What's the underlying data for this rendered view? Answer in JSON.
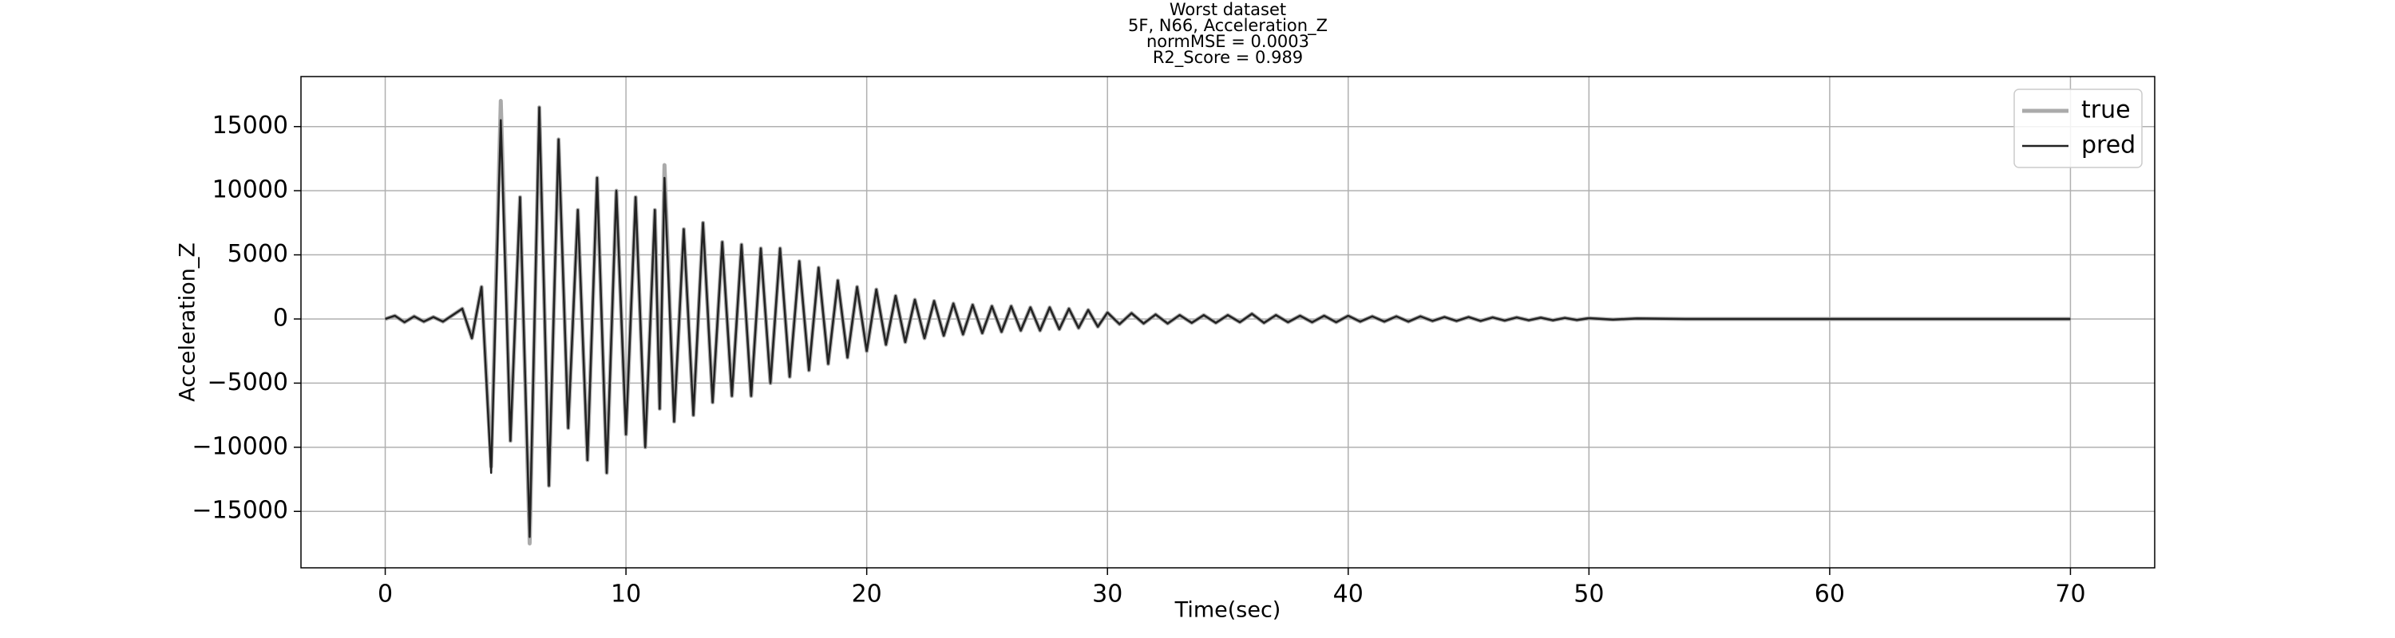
{
  "chart_data": {
    "type": "line",
    "title": [
      "Worst dataset",
      "5F, N66, Acceleration_Z",
      "normMSE = 0.0003",
      "R2_Score = 0.989"
    ],
    "xlabel": "Time(sec)",
    "ylabel": "Acceleration_Z",
    "xlim": [
      -3.5,
      73.5
    ],
    "ylim": [
      -19400,
      18900
    ],
    "xticks": [
      0,
      10,
      20,
      30,
      40,
      50,
      60,
      70
    ],
    "yticks": [
      {
        "value": -15000,
        "label": "−15000"
      },
      {
        "value": -10000,
        "label": "−10000"
      },
      {
        "value": -5000,
        "label": "−5000"
      },
      0,
      5000,
      10000,
      15000
    ],
    "grid": true,
    "legend": "upper right",
    "x": [
      0,
      0.4,
      0.8,
      1.2,
      1.6,
      2.0,
      2.4,
      2.8,
      3.2,
      3.6,
      4.0,
      4.4,
      4.8,
      5.2,
      5.6,
      6.0,
      6.4,
      6.8,
      7.2,
      7.6,
      8.0,
      8.4,
      8.8,
      9.2,
      9.6,
      10.0,
      10.4,
      10.8,
      11.2,
      11.4,
      11.6,
      12.0,
      12.4,
      12.8,
      13.2,
      13.6,
      14.0,
      14.4,
      14.8,
      15.2,
      15.6,
      16.0,
      16.4,
      16.8,
      17.2,
      17.6,
      18.0,
      18.4,
      18.8,
      19.2,
      19.6,
      20.0,
      20.4,
      20.8,
      21.2,
      21.6,
      22.0,
      22.4,
      22.8,
      23.2,
      23.6,
      24.0,
      24.4,
      24.8,
      25.2,
      25.6,
      26.0,
      26.4,
      26.8,
      27.2,
      27.6,
      28.0,
      28.4,
      28.8,
      29.2,
      29.6,
      30.0,
      30.5,
      31,
      31.5,
      32,
      32.5,
      33,
      33.5,
      34,
      34.5,
      35,
      35.5,
      36,
      36.5,
      37,
      37.5,
      38,
      38.5,
      39,
      39.5,
      40,
      40.5,
      41,
      41.5,
      42,
      42.5,
      43,
      43.5,
      44,
      44.5,
      45,
      45.5,
      46,
      46.5,
      47,
      47.5,
      48,
      48.5,
      49,
      49.5,
      50,
      51,
      52,
      54,
      60,
      70
    ],
    "series": [
      {
        "name": "true",
        "color": "#aaaaaa",
        "width": 5,
        "values": [
          0,
          250,
          -250,
          200,
          -200,
          150,
          -200,
          300,
          800,
          -1500,
          2500,
          -11500,
          17000,
          -9500,
          9500,
          -17500,
          16500,
          -13000,
          14000,
          -8500,
          8500,
          -11000,
          11000,
          -12000,
          10000,
          -9000,
          9500,
          -10000,
          8500,
          -7000,
          12000,
          -8000,
          7000,
          -7500,
          7500,
          -6500,
          6000,
          -6000,
          5800,
          -6000,
          5500,
          -5000,
          5500,
          -4500,
          4500,
          -4000,
          4000,
          -3500,
          3000,
          -3000,
          2500,
          -2500,
          2300,
          -2000,
          1800,
          -1800,
          1500,
          -1500,
          1400,
          -1300,
          1200,
          -1200,
          1100,
          -1100,
          1000,
          -1000,
          1000,
          -900,
          900,
          -900,
          900,
          -800,
          800,
          -700,
          700,
          -600,
          500,
          -400,
          450,
          -350,
          350,
          -350,
          300,
          -300,
          300,
          -300,
          300,
          -250,
          400,
          -300,
          300,
          -250,
          250,
          -250,
          250,
          -250,
          250,
          -200,
          200,
          -200,
          200,
          -200,
          200,
          -150,
          150,
          -150,
          150,
          -150,
          120,
          -120,
          120,
          -100,
          100,
          -100,
          80,
          -80,
          60,
          -50,
          40,
          0,
          0,
          0
        ]
      },
      {
        "name": "pred",
        "color": "#222222",
        "width": 2.5,
        "values": [
          0,
          250,
          -250,
          200,
          -200,
          150,
          -200,
          300,
          800,
          -1500,
          2500,
          -12000,
          15500,
          -9500,
          9500,
          -17000,
          16500,
          -13000,
          14000,
          -8500,
          8500,
          -11000,
          11000,
          -12000,
          10000,
          -9000,
          9500,
          -10000,
          8500,
          -7000,
          11000,
          -8000,
          7000,
          -7500,
          7500,
          -6500,
          6000,
          -6000,
          5800,
          -6000,
          5500,
          -5000,
          5500,
          -4500,
          4500,
          -4000,
          4000,
          -3500,
          3000,
          -3000,
          2500,
          -2500,
          2300,
          -2000,
          1800,
          -1800,
          1500,
          -1500,
          1400,
          -1300,
          1200,
          -1200,
          1100,
          -1100,
          1000,
          -1000,
          1000,
          -900,
          900,
          -900,
          900,
          -800,
          800,
          -700,
          700,
          -600,
          500,
          -400,
          450,
          -350,
          350,
          -350,
          300,
          -300,
          300,
          -300,
          300,
          -250,
          400,
          -300,
          300,
          -250,
          250,
          -250,
          250,
          -250,
          250,
          -200,
          200,
          -200,
          200,
          -200,
          200,
          -150,
          150,
          -150,
          150,
          -150,
          120,
          -120,
          120,
          -100,
          100,
          -100,
          80,
          -80,
          60,
          -50,
          40,
          0,
          0,
          0
        ]
      }
    ]
  }
}
